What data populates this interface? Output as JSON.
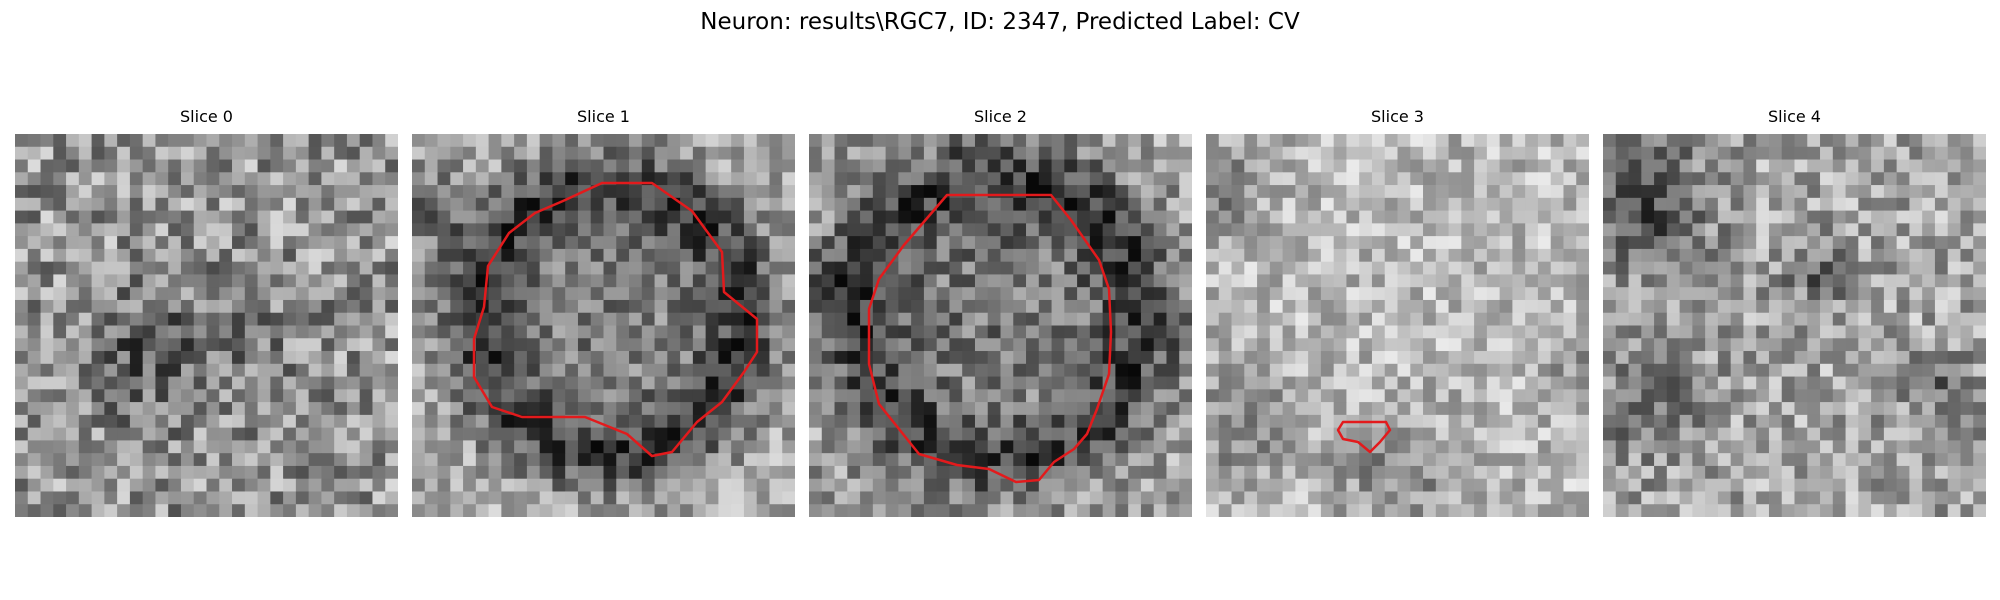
{
  "figure": {
    "title": "Neuron: results\\RGC7, ID: 2347, Predicted Label: CV"
  },
  "panels": [
    {
      "title": "Slice 0",
      "has_contour": false
    },
    {
      "title": "Slice 1",
      "has_contour": true
    },
    {
      "title": "Slice 2",
      "has_contour": true
    },
    {
      "title": "Slice 3",
      "has_contour": true
    },
    {
      "title": "Slice 4",
      "has_contour": false
    }
  ],
  "colors": {
    "contour": "#e31a1c"
  }
}
